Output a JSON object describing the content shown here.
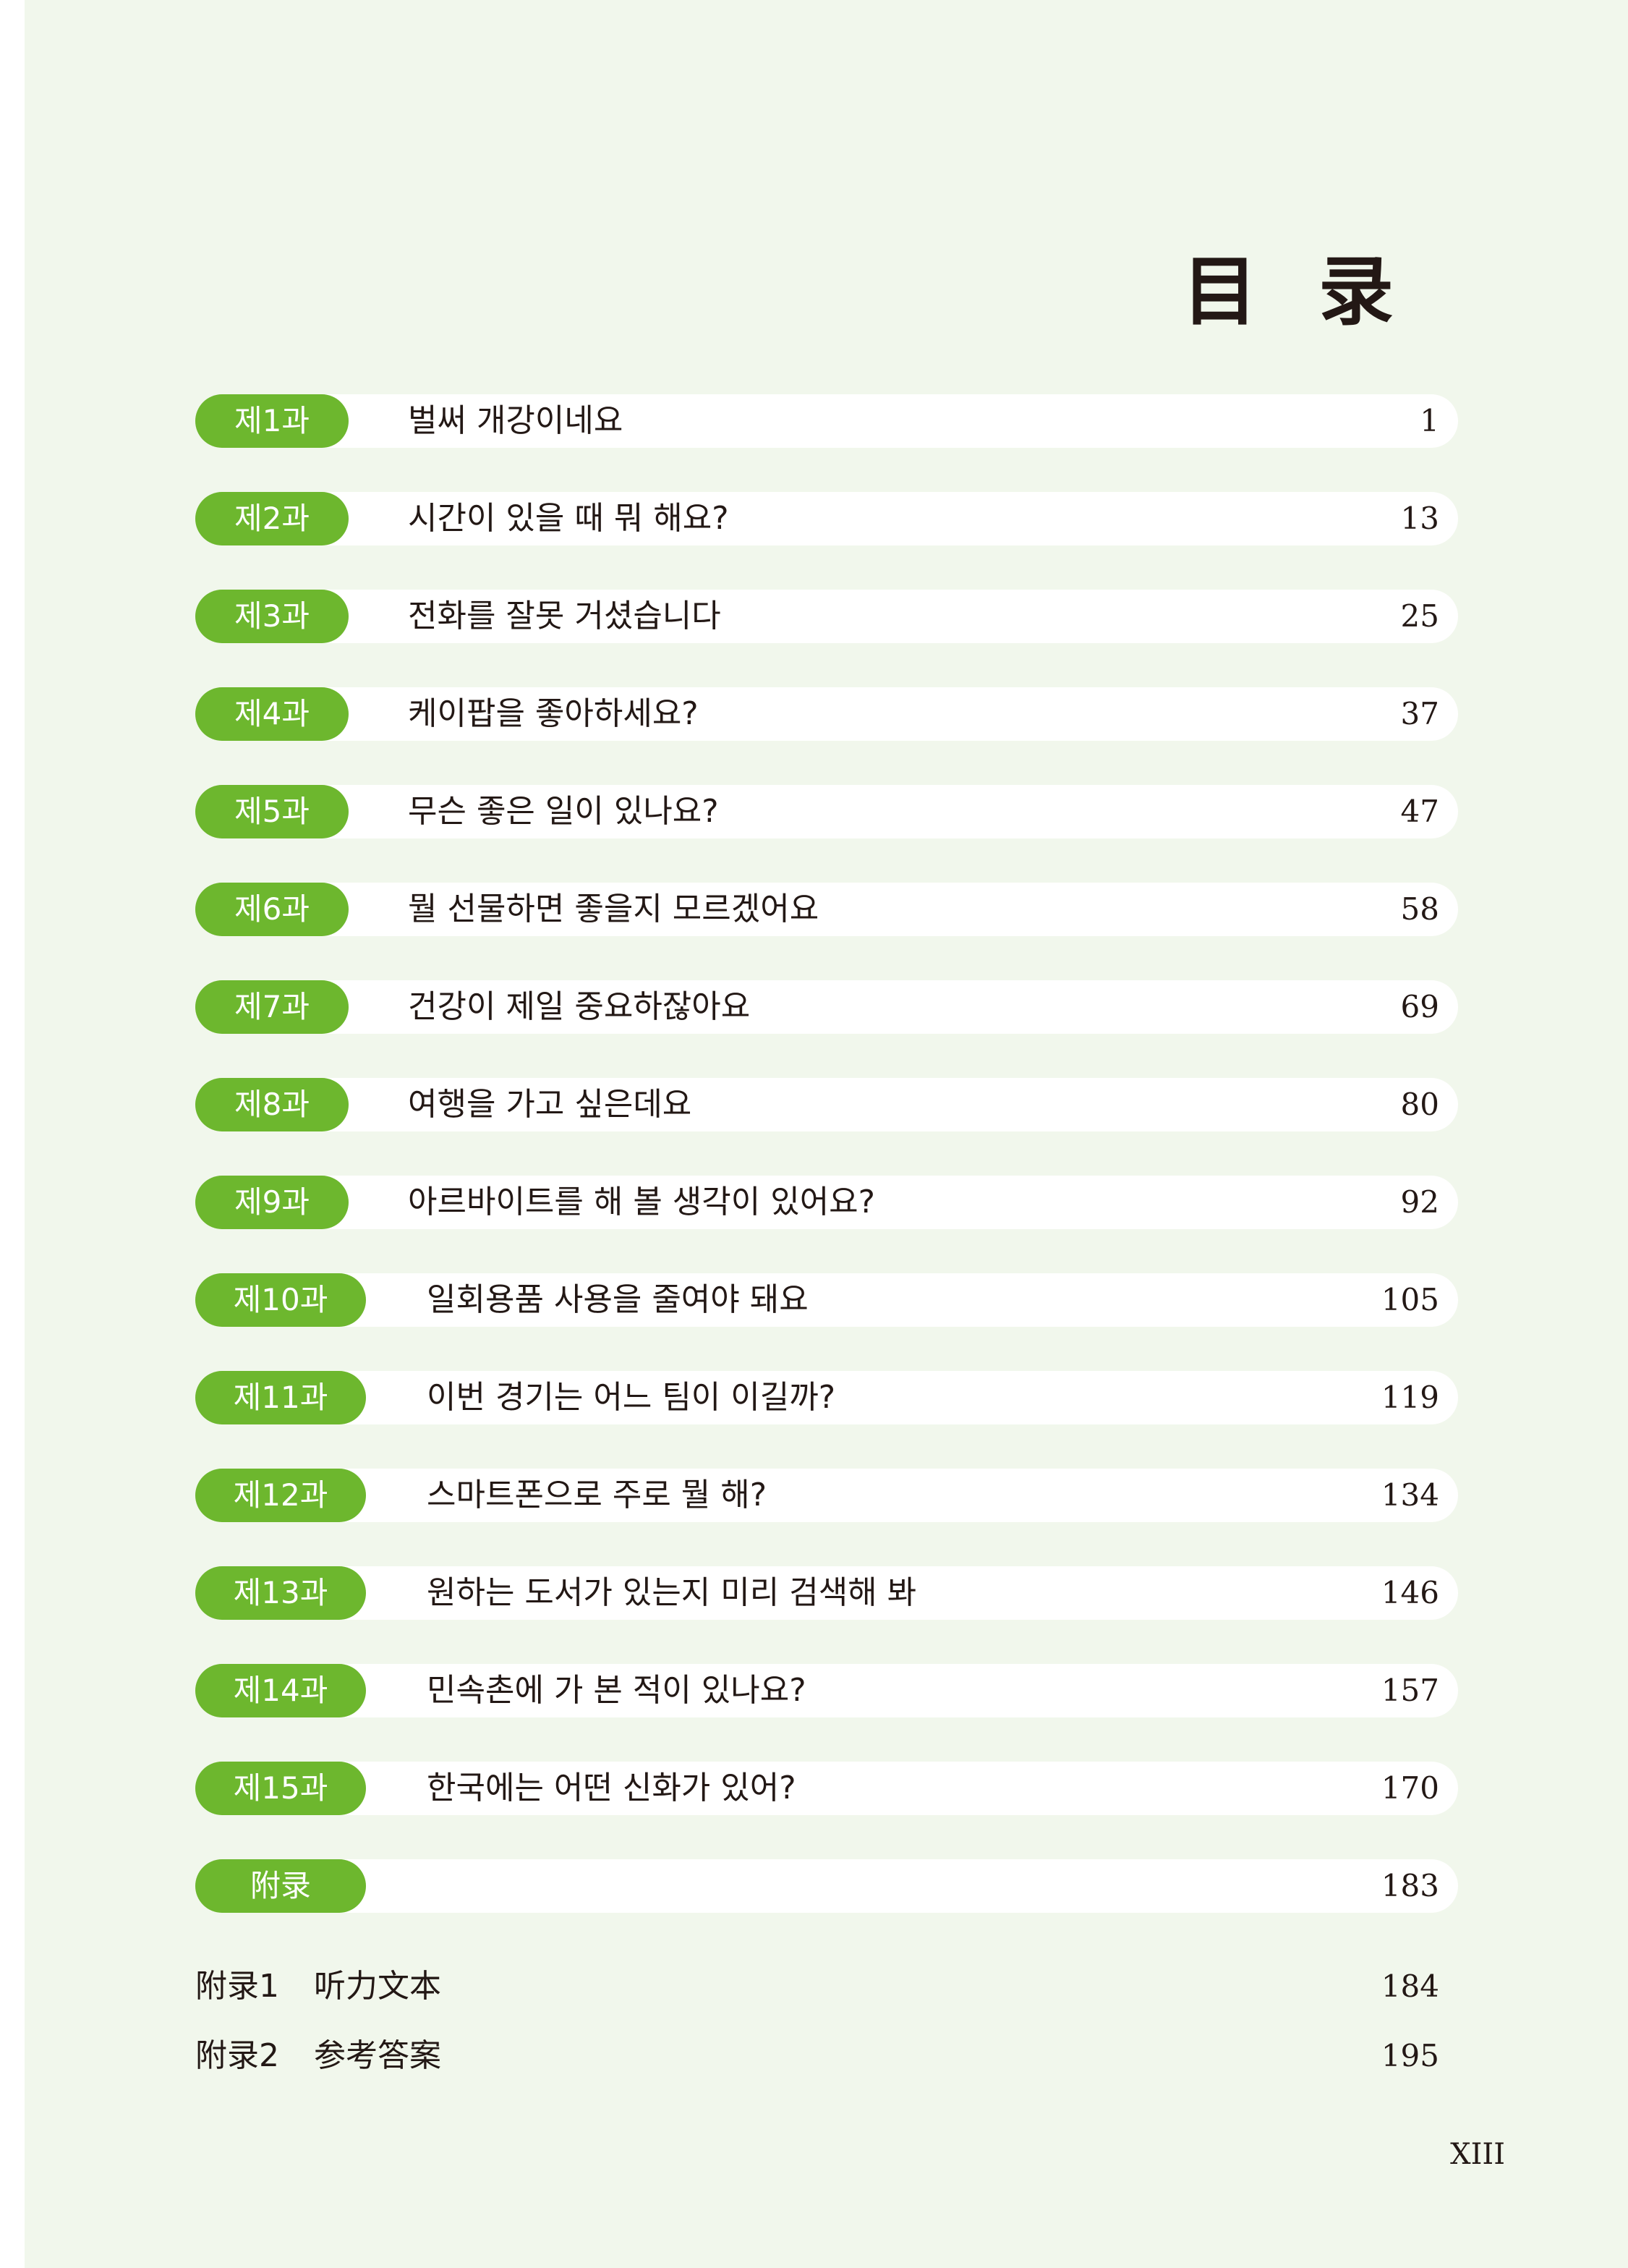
{
  "title": "目 录",
  "accent_color": "#6db72e",
  "lessons": [
    {
      "label": "제1과",
      "title": "벌써 개강이네요",
      "page": "1"
    },
    {
      "label": "제2과",
      "title": "시간이 있을 때 뭐 해요?",
      "page": "13"
    },
    {
      "label": "제3과",
      "title": "전화를 잘못 거셨습니다",
      "page": "25"
    },
    {
      "label": "제4과",
      "title": "케이팝을 좋아하세요?",
      "page": "37"
    },
    {
      "label": "제5과",
      "title": "무슨 좋은 일이 있나요?",
      "page": "47"
    },
    {
      "label": "제6과",
      "title": "뭘 선물하면 좋을지 모르겠어요",
      "page": "58"
    },
    {
      "label": "제7과",
      "title": "건강이 제일 중요하잖아요",
      "page": "69"
    },
    {
      "label": "제8과",
      "title": "여행을 가고 싶은데요",
      "page": "80"
    },
    {
      "label": "제9과",
      "title": "아르바이트를 해 볼 생각이 있어요?",
      "page": "92"
    },
    {
      "label": "제10과",
      "title": "일회용품 사용을 줄여야 돼요",
      "page": "105"
    },
    {
      "label": "제11과",
      "title": "이번 경기는 어느 팀이 이길까?",
      "page": "119"
    },
    {
      "label": "제12과",
      "title": "스마트폰으로 주로 뭘 해?",
      "page": "134"
    },
    {
      "label": "제13과",
      "title": "원하는 도서가 있는지 미리 검색해 봐",
      "page": "146"
    },
    {
      "label": "제14과",
      "title": "민속촌에 가 본 적이 있나요?",
      "page": "157"
    },
    {
      "label": "제15과",
      "title": "한국에는 어떤 신화가 있어?",
      "page": "170"
    },
    {
      "label": "附录",
      "title": "",
      "page": "183"
    }
  ],
  "appendix": [
    {
      "label": "附录1",
      "title": "听力文本",
      "page": "184"
    },
    {
      "label": "附录2",
      "title": "参考答案",
      "page": "195"
    }
  ],
  "folio": "XIII"
}
